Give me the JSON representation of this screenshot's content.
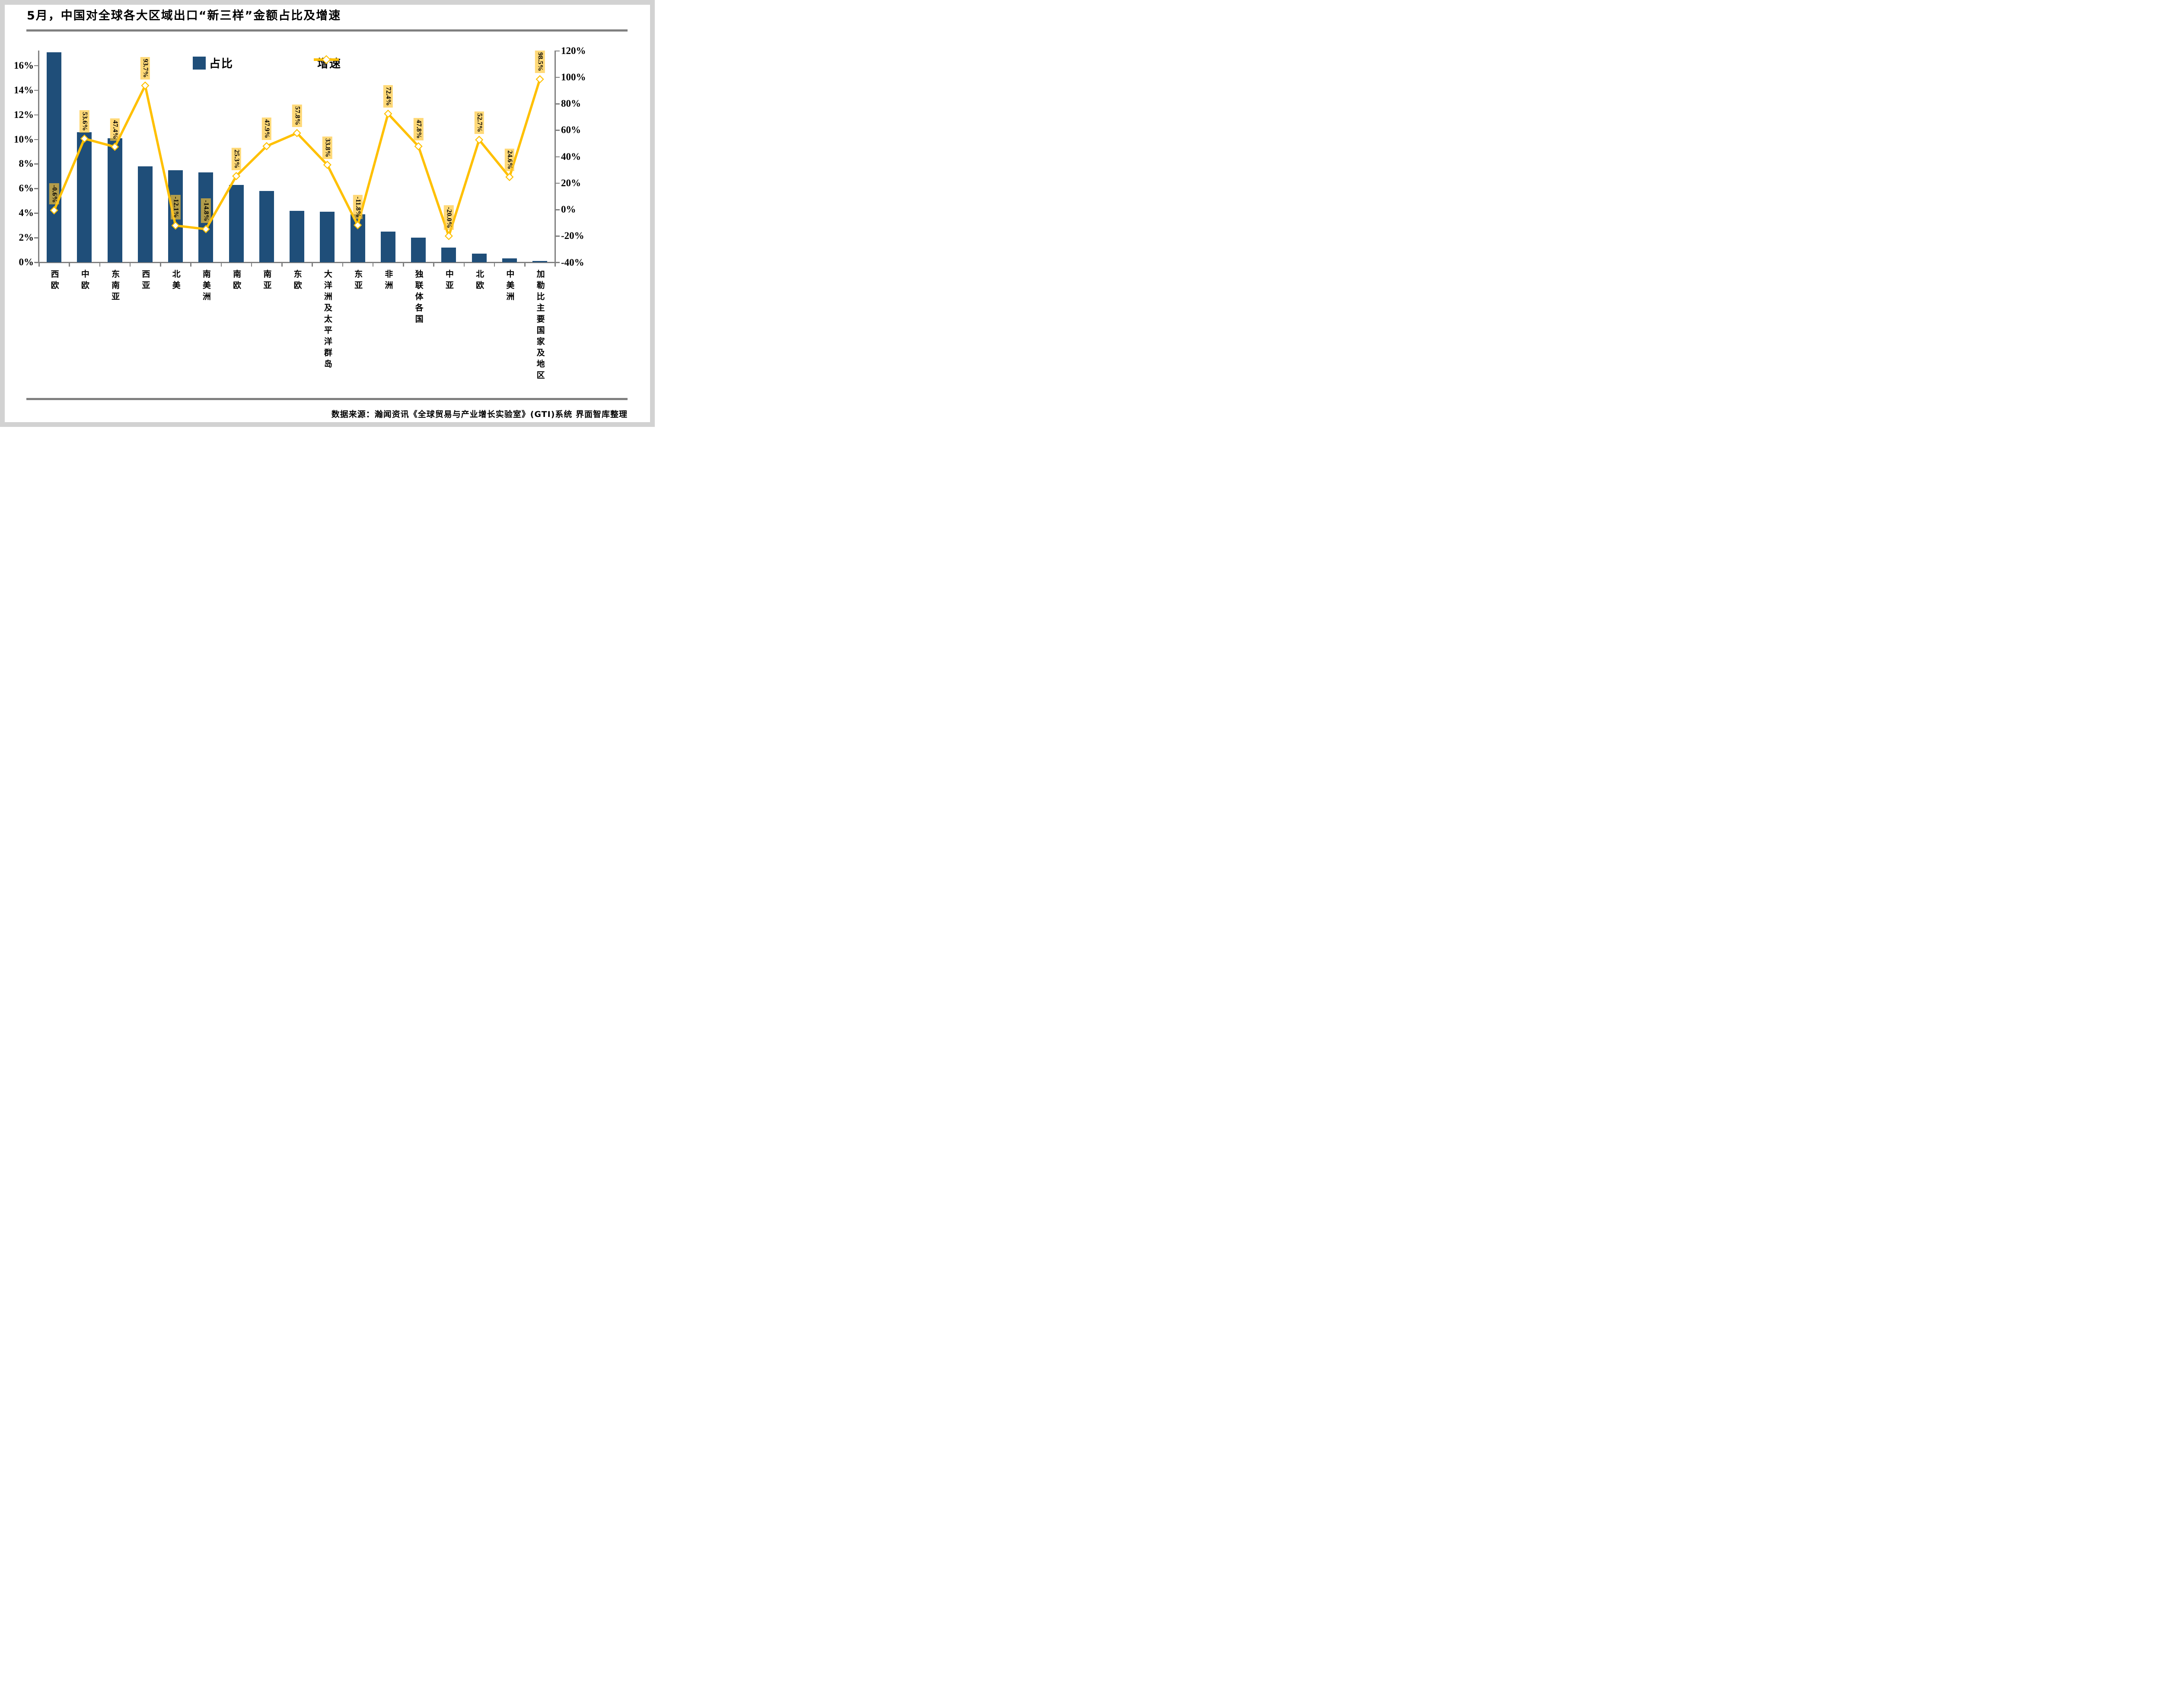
{
  "title": "5月，中国对全球各大区域出口“新三样”金额占比及增速",
  "footer": "数据来源：瀚闻资讯《全球贸易与产业增长实验室》(GTI)系统  界面智库整理",
  "legend": {
    "items": [
      {
        "label": "占比",
        "type": "bar",
        "color": "#1F4E79"
      },
      {
        "label": "增速",
        "type": "line",
        "color": "#FFC000",
        "marker": "white-diamond"
      }
    ],
    "position": "top-center"
  },
  "colors": {
    "bar": "#1F4E79",
    "line": "#FFC000",
    "marker_fill": "#FFFFFF",
    "data_label_bg": "rgba(255,198,50,0.66)",
    "axis": "#808080",
    "divider": "#808080",
    "frame": "#D2D2D2",
    "text": "#000000"
  },
  "chart_data": {
    "type": "bar",
    "subtype": "bar+line combo, dual axis",
    "grid": "off",
    "categories": [
      "西欧",
      "中欧",
      "东南亚",
      "西亚",
      "北美",
      "南美洲",
      "南欧",
      "南亚",
      "东欧",
      "大洋洲及太平洋群岛",
      "东亚",
      "非洲",
      "独联体各国",
      "中亚",
      "北欧",
      "中美洲",
      "加勒比主要国家及地区"
    ],
    "series": [
      {
        "name": "占比",
        "type": "bar",
        "axis": "left",
        "unit": "%",
        "color": "#1F4E79",
        "values": [
          17.1,
          10.6,
          10.1,
          7.8,
          7.5,
          7.3,
          6.3,
          5.8,
          4.2,
          4.1,
          3.9,
          2.5,
          2.0,
          1.2,
          0.7,
          0.3,
          0.1
        ]
      },
      {
        "name": "增速",
        "type": "line",
        "axis": "right",
        "unit": "%",
        "color": "#FFC000",
        "marker": "white-diamond",
        "values": [
          -0.6,
          53.6,
          47.4,
          93.7,
          -12.1,
          -14.8,
          25.3,
          47.9,
          57.8,
          33.8,
          -11.8,
          72.4,
          47.8,
          -20.0,
          52.7,
          24.6,
          98.5
        ],
        "labels": [
          "-0.6%",
          "53.6%",
          "47.4%",
          "93.7%",
          "-12.1%",
          "-14.8%",
          "25.3%",
          "47.9%",
          "57.8%",
          "33.8%",
          "-11.8%",
          "72.4%",
          "47.8%",
          "-20.0%",
          "52.7%",
          "24.6%",
          "98.5%"
        ]
      }
    ],
    "left_axis": {
      "title": "",
      "unit": "%",
      "min": 0,
      "max": 17.2,
      "major_unit": 2,
      "ticks_top_to_bottom": [
        "16%",
        "14%",
        "12%",
        "10%",
        "8%",
        "6%",
        "4%",
        "2%",
        "0%"
      ]
    },
    "right_axis": {
      "title": "",
      "unit": "%",
      "min": -40,
      "max": 120,
      "major_unit": 20,
      "ticks_top_to_bottom": [
        "120%",
        "100%",
        "80%",
        "60%",
        "40%",
        "20%",
        "0%",
        "-20%",
        "-40%"
      ]
    }
  }
}
